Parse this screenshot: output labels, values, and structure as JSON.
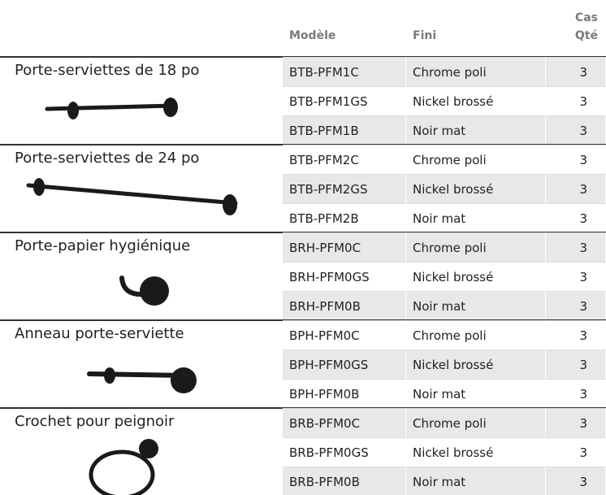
{
  "header": {
    "model": "Modèle",
    "finish": "Fini",
    "qty": [
      "Cas",
      "Qté"
    ]
  },
  "groups": [
    {
      "name": "Porte-serviettes de 18 po",
      "rows": [
        [
          "BTB-PFM1C",
          "Chrome poli",
          3
        ],
        [
          "BTB-PFM1GS",
          "Nickel brossé",
          3
        ],
        [
          "BTB-PFM1B",
          "Noir mat",
          3
        ]
      ]
    },
    {
      "name": "Porte-serviettes de 24 po",
      "rows": [
        [
          "BTB-PFM2C",
          "Chrome poli",
          3
        ],
        [
          "BTB-PFM2GS",
          "Nickel brossé",
          3
        ],
        [
          "BTB-PFM2B",
          "Noir mat",
          3
        ]
      ]
    },
    {
      "name": "Porte-papier hygiénique",
      "rows": [
        [
          "BRH-PFM0C",
          "Chrome poli",
          3
        ],
        [
          "BRH-PFM0GS",
          "Nickel brossé",
          3
        ],
        [
          "BRH-PFM0B",
          "Noir mat",
          3
        ]
      ]
    },
    {
      "name": "Anneau porte-serviette",
      "rows": [
        [
          "BPH-PFM0C",
          "Chrome poli",
          3
        ],
        [
          "BPH-PFM0GS",
          "Nickel brossé",
          3
        ],
        [
          "BPH-PFM0B",
          "Noir mat",
          3
        ]
      ]
    },
    {
      "name": "Crochet pour peignoir",
      "rows": [
        [
          "BRB-PFM0C",
          "Chrome poli",
          3
        ],
        [
          "BRB-PFM0GS",
          "Nickel brossé",
          3
        ],
        [
          "BRB-PFM0B",
          "Noir mat",
          3
        ]
      ]
    }
  ]
}
